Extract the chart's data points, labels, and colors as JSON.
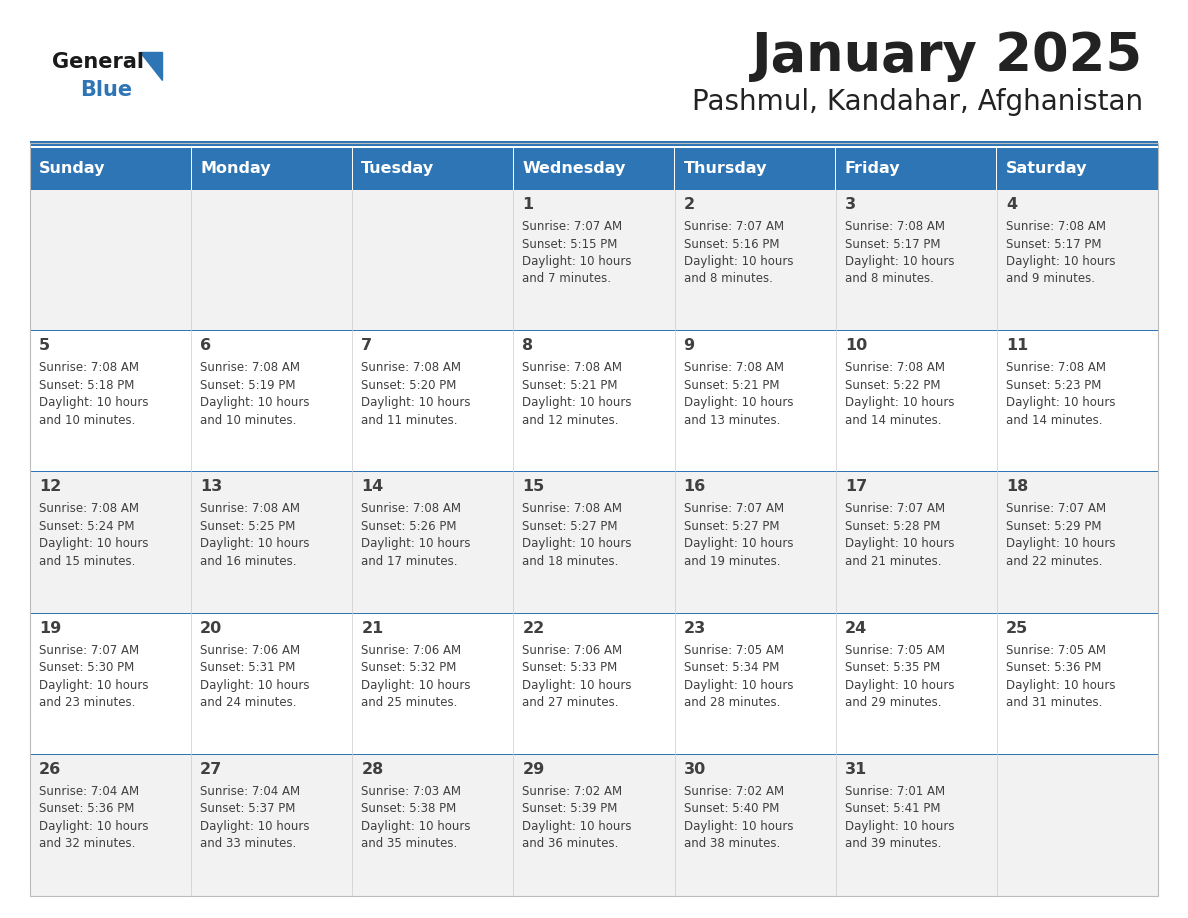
{
  "title": "January 2025",
  "subtitle": "Pashmul, Kandahar, Afghanistan",
  "days_of_week": [
    "Sunday",
    "Monday",
    "Tuesday",
    "Wednesday",
    "Thursday",
    "Friday",
    "Saturday"
  ],
  "header_bg": "#2E75B6",
  "header_text_color": "#FFFFFF",
  "row_bg_odd": "#F2F2F2",
  "row_bg_even": "#FFFFFF",
  "separator_color": "#2E75B6",
  "text_color": "#404040",
  "title_color": "#222222",
  "logo_black_color": "#1a1a1a",
  "logo_blue_color": "#2E75B6",
  "calendar_data": [
    [
      {
        "day": "",
        "info": ""
      },
      {
        "day": "",
        "info": ""
      },
      {
        "day": "",
        "info": ""
      },
      {
        "day": "1",
        "info": "Sunrise: 7:07 AM\nSunset: 5:15 PM\nDaylight: 10 hours\nand 7 minutes."
      },
      {
        "day": "2",
        "info": "Sunrise: 7:07 AM\nSunset: 5:16 PM\nDaylight: 10 hours\nand 8 minutes."
      },
      {
        "day": "3",
        "info": "Sunrise: 7:08 AM\nSunset: 5:17 PM\nDaylight: 10 hours\nand 8 minutes."
      },
      {
        "day": "4",
        "info": "Sunrise: 7:08 AM\nSunset: 5:17 PM\nDaylight: 10 hours\nand 9 minutes."
      }
    ],
    [
      {
        "day": "5",
        "info": "Sunrise: 7:08 AM\nSunset: 5:18 PM\nDaylight: 10 hours\nand 10 minutes."
      },
      {
        "day": "6",
        "info": "Sunrise: 7:08 AM\nSunset: 5:19 PM\nDaylight: 10 hours\nand 10 minutes."
      },
      {
        "day": "7",
        "info": "Sunrise: 7:08 AM\nSunset: 5:20 PM\nDaylight: 10 hours\nand 11 minutes."
      },
      {
        "day": "8",
        "info": "Sunrise: 7:08 AM\nSunset: 5:21 PM\nDaylight: 10 hours\nand 12 minutes."
      },
      {
        "day": "9",
        "info": "Sunrise: 7:08 AM\nSunset: 5:21 PM\nDaylight: 10 hours\nand 13 minutes."
      },
      {
        "day": "10",
        "info": "Sunrise: 7:08 AM\nSunset: 5:22 PM\nDaylight: 10 hours\nand 14 minutes."
      },
      {
        "day": "11",
        "info": "Sunrise: 7:08 AM\nSunset: 5:23 PM\nDaylight: 10 hours\nand 14 minutes."
      }
    ],
    [
      {
        "day": "12",
        "info": "Sunrise: 7:08 AM\nSunset: 5:24 PM\nDaylight: 10 hours\nand 15 minutes."
      },
      {
        "day": "13",
        "info": "Sunrise: 7:08 AM\nSunset: 5:25 PM\nDaylight: 10 hours\nand 16 minutes."
      },
      {
        "day": "14",
        "info": "Sunrise: 7:08 AM\nSunset: 5:26 PM\nDaylight: 10 hours\nand 17 minutes."
      },
      {
        "day": "15",
        "info": "Sunrise: 7:08 AM\nSunset: 5:27 PM\nDaylight: 10 hours\nand 18 minutes."
      },
      {
        "day": "16",
        "info": "Sunrise: 7:07 AM\nSunset: 5:27 PM\nDaylight: 10 hours\nand 19 minutes."
      },
      {
        "day": "17",
        "info": "Sunrise: 7:07 AM\nSunset: 5:28 PM\nDaylight: 10 hours\nand 21 minutes."
      },
      {
        "day": "18",
        "info": "Sunrise: 7:07 AM\nSunset: 5:29 PM\nDaylight: 10 hours\nand 22 minutes."
      }
    ],
    [
      {
        "day": "19",
        "info": "Sunrise: 7:07 AM\nSunset: 5:30 PM\nDaylight: 10 hours\nand 23 minutes."
      },
      {
        "day": "20",
        "info": "Sunrise: 7:06 AM\nSunset: 5:31 PM\nDaylight: 10 hours\nand 24 minutes."
      },
      {
        "day": "21",
        "info": "Sunrise: 7:06 AM\nSunset: 5:32 PM\nDaylight: 10 hours\nand 25 minutes."
      },
      {
        "day": "22",
        "info": "Sunrise: 7:06 AM\nSunset: 5:33 PM\nDaylight: 10 hours\nand 27 minutes."
      },
      {
        "day": "23",
        "info": "Sunrise: 7:05 AM\nSunset: 5:34 PM\nDaylight: 10 hours\nand 28 minutes."
      },
      {
        "day": "24",
        "info": "Sunrise: 7:05 AM\nSunset: 5:35 PM\nDaylight: 10 hours\nand 29 minutes."
      },
      {
        "day": "25",
        "info": "Sunrise: 7:05 AM\nSunset: 5:36 PM\nDaylight: 10 hours\nand 31 minutes."
      }
    ],
    [
      {
        "day": "26",
        "info": "Sunrise: 7:04 AM\nSunset: 5:36 PM\nDaylight: 10 hours\nand 32 minutes."
      },
      {
        "day": "27",
        "info": "Sunrise: 7:04 AM\nSunset: 5:37 PM\nDaylight: 10 hours\nand 33 minutes."
      },
      {
        "day": "28",
        "info": "Sunrise: 7:03 AM\nSunset: 5:38 PM\nDaylight: 10 hours\nand 35 minutes."
      },
      {
        "day": "29",
        "info": "Sunrise: 7:02 AM\nSunset: 5:39 PM\nDaylight: 10 hours\nand 36 minutes."
      },
      {
        "day": "30",
        "info": "Sunrise: 7:02 AM\nSunset: 5:40 PM\nDaylight: 10 hours\nand 38 minutes."
      },
      {
        "day": "31",
        "info": "Sunrise: 7:01 AM\nSunset: 5:41 PM\nDaylight: 10 hours\nand 39 minutes."
      },
      {
        "day": "",
        "info": ""
      }
    ]
  ]
}
